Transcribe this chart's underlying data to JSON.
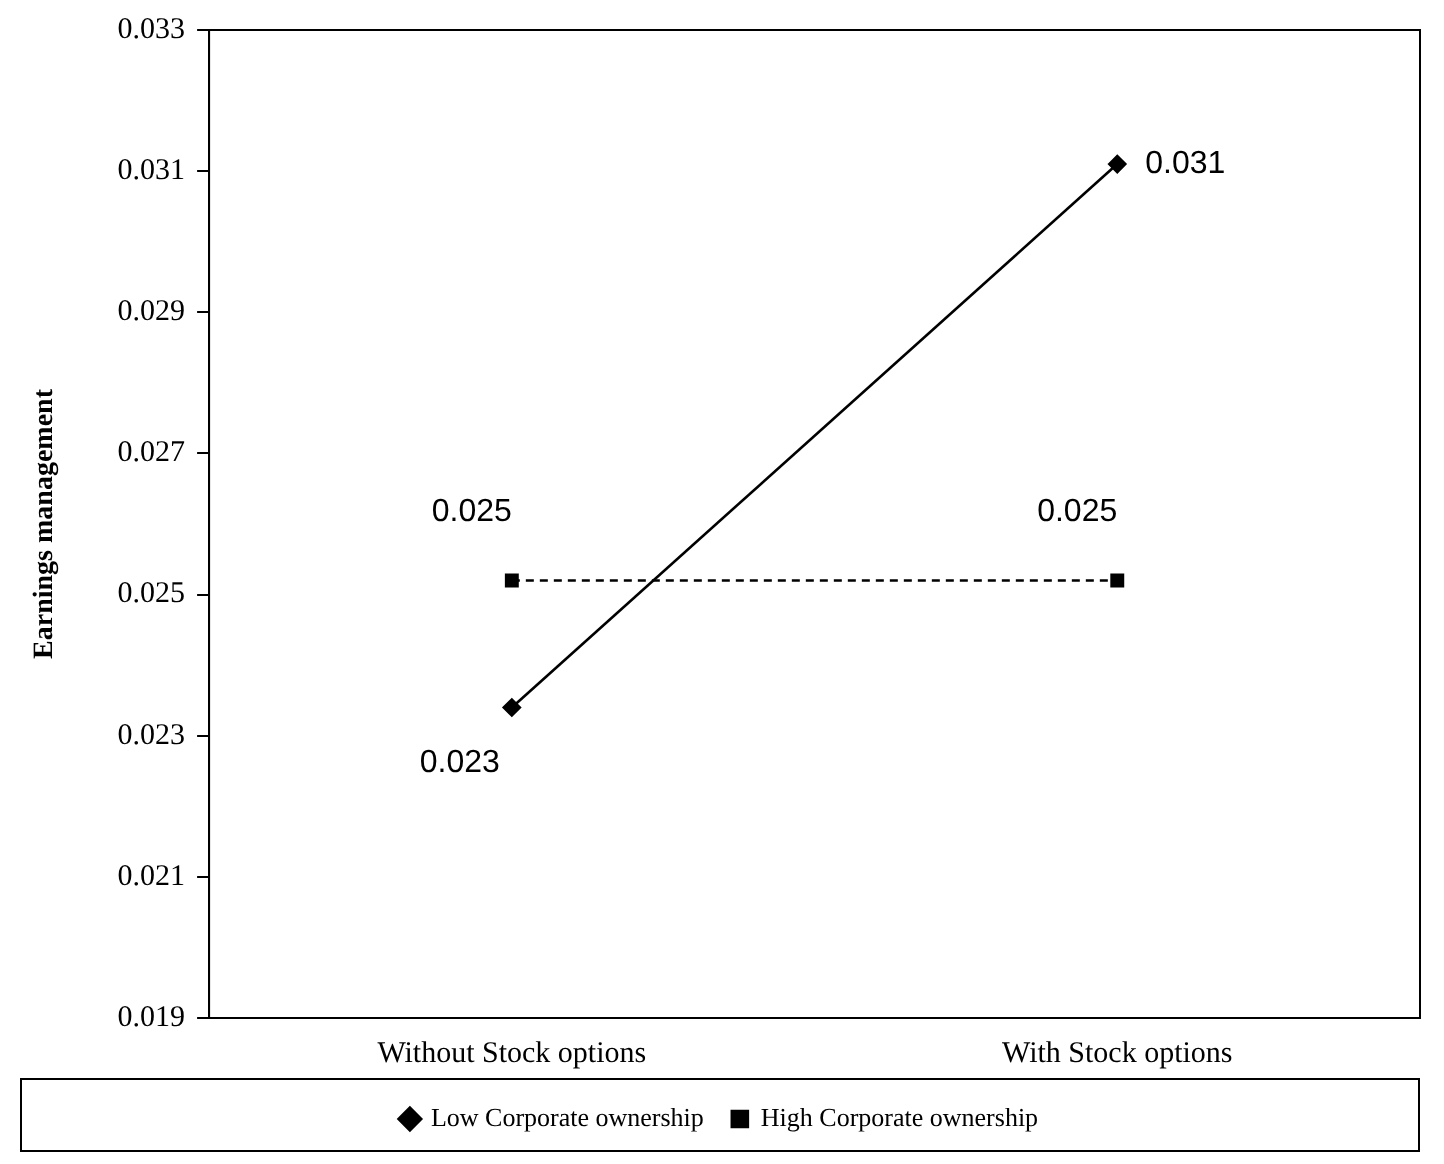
{
  "chart_data": {
    "type": "line",
    "ylabel": "Earnings management",
    "categories": [
      "Without Stock options",
      "With Stock options"
    ],
    "series": [
      {
        "name": "Low Corporate ownership",
        "color": "#000000",
        "marker": "diamond",
        "line_style": "solid",
        "values": [
          0.0234,
          0.0311
        ],
        "value_labels": [
          "0.023",
          "0.031"
        ]
      },
      {
        "name": "High Corporate ownership",
        "color": "#000000",
        "marker": "square",
        "line_style": "dashed",
        "values": [
          0.0252,
          0.0252
        ],
        "value_labels": [
          "0.025",
          "0.025"
        ]
      }
    ],
    "ylim": [
      0.019,
      0.033
    ],
    "yticks": [
      0.019,
      0.021,
      0.023,
      0.025,
      0.027,
      0.029,
      0.031,
      0.033
    ],
    "grid": false,
    "legend": "bottom"
  }
}
